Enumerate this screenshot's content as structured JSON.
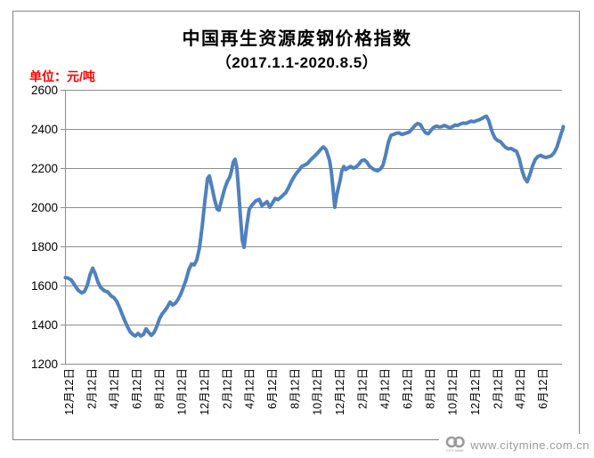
{
  "page": {
    "background": "#ffffff",
    "frame_border_color": "#848484"
  },
  "header": {
    "title": "中国再生资源废钢价格指数",
    "subtitle": "（2017.1.1-2020.8.5）",
    "unit_label": "单位：元/吨",
    "unit_color": "#ff0000"
  },
  "watermark": {
    "url_text": "www.citymine.com.cn",
    "logo_text": "CITY MINE",
    "color": "#9b9b9b"
  },
  "chart_data": {
    "type": "line",
    "title": "中国再生资源废钢价格指数",
    "subtitle": "（2017.1.1-2020.8.5）",
    "ylabel_unit": "元/吨",
    "ylim": [
      1200,
      2600
    ],
    "y_ticks": [
      1200,
      1400,
      1600,
      1800,
      2000,
      2200,
      2400,
      2600
    ],
    "x_ticks": [
      "12月12日",
      "2月12日",
      "4月12日",
      "6月12日",
      "8月12日",
      "10月12日",
      "12月12日",
      "2月12日",
      "4月12日",
      "6月12日",
      "8月12日",
      "10月12日",
      "12月12日",
      "2月12日",
      "4月12日",
      "6月12日",
      "8月12日",
      "10月12日",
      "12月12日",
      "2月12日",
      "4月12日",
      "6月12日"
    ],
    "grid": true,
    "legend": "none",
    "line_color": "#4F81BD",
    "grid_color": "#8e8e8e",
    "points_format": "[x_position_in_tick_index_units, price_yuan_per_ton]",
    "points": [
      [
        -0.2,
        1640
      ],
      [
        -0.08,
        1638
      ],
      [
        0.08,
        1628
      ],
      [
        0.24,
        1600
      ],
      [
        0.39,
        1575
      ],
      [
        0.55,
        1562
      ],
      [
        0.67,
        1570
      ],
      [
        0.79,
        1600
      ],
      [
        0.91,
        1655
      ],
      [
        1.03,
        1688
      ],
      [
        1.14,
        1660
      ],
      [
        1.26,
        1618
      ],
      [
        1.38,
        1590
      ],
      [
        1.54,
        1573
      ],
      [
        1.7,
        1567
      ],
      [
        1.86,
        1545
      ],
      [
        1.97,
        1538
      ],
      [
        2.09,
        1520
      ],
      [
        2.21,
        1490
      ],
      [
        2.33,
        1455
      ],
      [
        2.45,
        1420
      ],
      [
        2.57,
        1390
      ],
      [
        2.68,
        1365
      ],
      [
        2.8,
        1350
      ],
      [
        2.92,
        1342
      ],
      [
        3.04,
        1355
      ],
      [
        3.16,
        1342
      ],
      [
        3.28,
        1350
      ],
      [
        3.4,
        1378
      ],
      [
        3.51,
        1360
      ],
      [
        3.63,
        1345
      ],
      [
        3.75,
        1360
      ],
      [
        3.87,
        1390
      ],
      [
        3.99,
        1430
      ],
      [
        4.11,
        1455
      ],
      [
        4.22,
        1470
      ],
      [
        4.34,
        1490
      ],
      [
        4.46,
        1515
      ],
      [
        4.58,
        1500
      ],
      [
        4.7,
        1510
      ],
      [
        4.82,
        1530
      ],
      [
        4.93,
        1555
      ],
      [
        5.05,
        1590
      ],
      [
        5.17,
        1630
      ],
      [
        5.29,
        1680
      ],
      [
        5.41,
        1710
      ],
      [
        5.53,
        1705
      ],
      [
        5.64,
        1730
      ],
      [
        5.76,
        1790
      ],
      [
        5.88,
        1900
      ],
      [
        6.0,
        2030
      ],
      [
        6.12,
        2145
      ],
      [
        6.2,
        2160
      ],
      [
        6.32,
        2100
      ],
      [
        6.43,
        2040
      ],
      [
        6.55,
        1990
      ],
      [
        6.63,
        1985
      ],
      [
        6.75,
        2040
      ],
      [
        6.87,
        2090
      ],
      [
        6.99,
        2130
      ],
      [
        7.11,
        2155
      ],
      [
        7.18,
        2185
      ],
      [
        7.26,
        2230
      ],
      [
        7.34,
        2245
      ],
      [
        7.42,
        2200
      ],
      [
        7.5,
        2080
      ],
      [
        7.58,
        1950
      ],
      [
        7.66,
        1830
      ],
      [
        7.74,
        1795
      ],
      [
        7.86,
        1905
      ],
      [
        7.97,
        1990
      ],
      [
        8.09,
        2010
      ],
      [
        8.25,
        2032
      ],
      [
        8.41,
        2040
      ],
      [
        8.53,
        2008
      ],
      [
        8.65,
        2018
      ],
      [
        8.76,
        2028
      ],
      [
        8.88,
        2000
      ],
      [
        9.0,
        2022
      ],
      [
        9.12,
        2045
      ],
      [
        9.24,
        2038
      ],
      [
        9.36,
        2050
      ],
      [
        9.47,
        2062
      ],
      [
        9.59,
        2075
      ],
      [
        9.71,
        2100
      ],
      [
        9.83,
        2130
      ],
      [
        9.95,
        2155
      ],
      [
        10.07,
        2175
      ],
      [
        10.18,
        2190
      ],
      [
        10.3,
        2208
      ],
      [
        10.42,
        2215
      ],
      [
        10.54,
        2222
      ],
      [
        10.66,
        2238
      ],
      [
        10.78,
        2252
      ],
      [
        10.9,
        2265
      ],
      [
        11.01,
        2278
      ],
      [
        11.13,
        2295
      ],
      [
        11.25,
        2308
      ],
      [
        11.37,
        2295
      ],
      [
        11.45,
        2268
      ],
      [
        11.53,
        2238
      ],
      [
        11.61,
        2180
      ],
      [
        11.69,
        2090
      ],
      [
        11.76,
        2000
      ],
      [
        11.84,
        2058
      ],
      [
        11.92,
        2100
      ],
      [
        12.0,
        2140
      ],
      [
        12.08,
        2188
      ],
      [
        12.16,
        2208
      ],
      [
        12.24,
        2192
      ],
      [
        12.36,
        2202
      ],
      [
        12.47,
        2208
      ],
      [
        12.59,
        2200
      ],
      [
        12.71,
        2206
      ],
      [
        12.83,
        2220
      ],
      [
        12.95,
        2238
      ],
      [
        13.07,
        2242
      ],
      [
        13.19,
        2230
      ],
      [
        13.3,
        2210
      ],
      [
        13.42,
        2198
      ],
      [
        13.54,
        2190
      ],
      [
        13.66,
        2186
      ],
      [
        13.78,
        2195
      ],
      [
        13.9,
        2215
      ],
      [
        14.02,
        2270
      ],
      [
        14.13,
        2330
      ],
      [
        14.25,
        2368
      ],
      [
        14.37,
        2372
      ],
      [
        14.49,
        2378
      ],
      [
        14.61,
        2380
      ],
      [
        14.73,
        2372
      ],
      [
        14.85,
        2376
      ],
      [
        14.96,
        2380
      ],
      [
        15.08,
        2386
      ],
      [
        15.2,
        2402
      ],
      [
        15.32,
        2418
      ],
      [
        15.44,
        2428
      ],
      [
        15.56,
        2422
      ],
      [
        15.67,
        2398
      ],
      [
        15.79,
        2380
      ],
      [
        15.91,
        2376
      ],
      [
        16.03,
        2394
      ],
      [
        16.15,
        2408
      ],
      [
        16.27,
        2415
      ],
      [
        16.38,
        2410
      ],
      [
        16.5,
        2412
      ],
      [
        16.62,
        2418
      ],
      [
        16.74,
        2412
      ],
      [
        16.86,
        2406
      ],
      [
        16.98,
        2412
      ],
      [
        17.09,
        2420
      ],
      [
        17.21,
        2418
      ],
      [
        17.33,
        2425
      ],
      [
        17.45,
        2430
      ],
      [
        17.57,
        2428
      ],
      [
        17.69,
        2434
      ],
      [
        17.81,
        2440
      ],
      [
        17.92,
        2437
      ],
      [
        18.04,
        2442
      ],
      [
        18.16,
        2447
      ],
      [
        18.28,
        2453
      ],
      [
        18.4,
        2462
      ],
      [
        18.48,
        2465
      ],
      [
        18.59,
        2442
      ],
      [
        18.67,
        2408
      ],
      [
        18.75,
        2380
      ],
      [
        18.87,
        2352
      ],
      [
        18.99,
        2340
      ],
      [
        19.11,
        2335
      ],
      [
        19.22,
        2318
      ],
      [
        19.34,
        2305
      ],
      [
        19.46,
        2298
      ],
      [
        19.58,
        2300
      ],
      [
        19.7,
        2292
      ],
      [
        19.82,
        2285
      ],
      [
        19.94,
        2248
      ],
      [
        20.06,
        2188
      ],
      [
        20.17,
        2150
      ],
      [
        20.29,
        2130
      ],
      [
        20.41,
        2168
      ],
      [
        20.53,
        2212
      ],
      [
        20.65,
        2245
      ],
      [
        20.77,
        2260
      ],
      [
        20.88,
        2265
      ],
      [
        21.0,
        2258
      ],
      [
        21.12,
        2254
      ],
      [
        21.24,
        2258
      ],
      [
        21.36,
        2263
      ],
      [
        21.48,
        2278
      ],
      [
        21.6,
        2305
      ],
      [
        21.71,
        2345
      ],
      [
        21.79,
        2375
      ],
      [
        21.87,
        2400
      ],
      [
        21.91,
        2412
      ]
    ]
  }
}
